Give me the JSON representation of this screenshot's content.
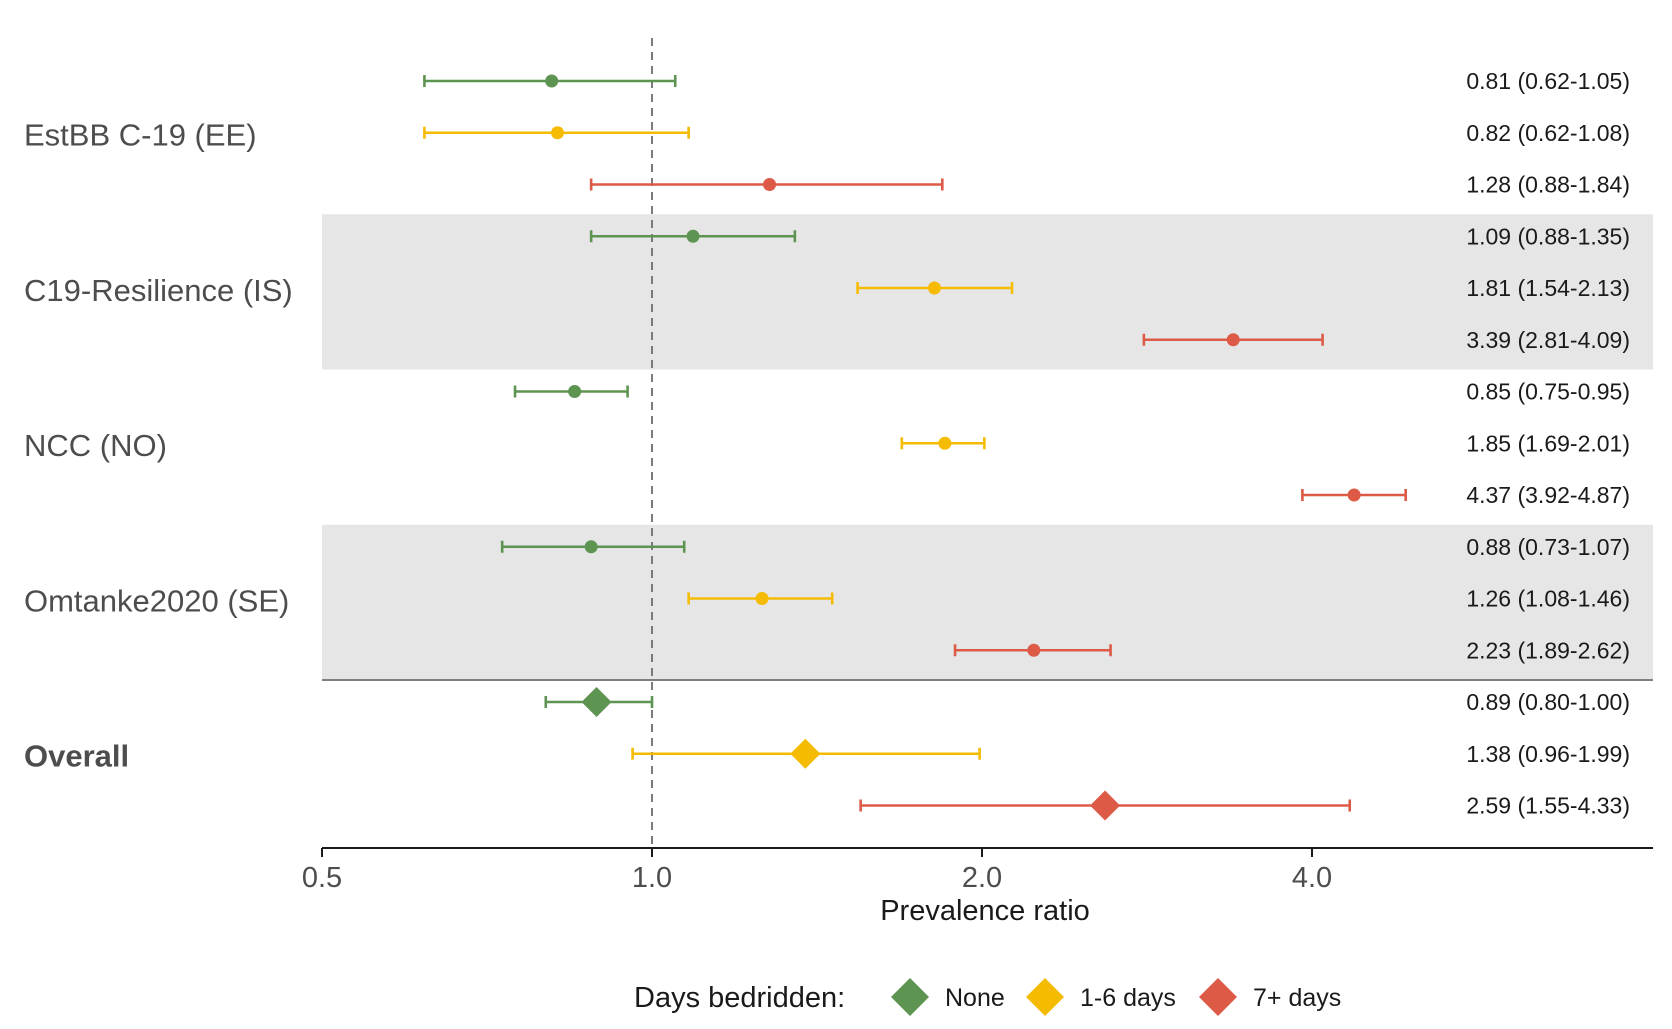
{
  "chart_data": {
    "type": "forest",
    "title": "",
    "xlabel": "Prevalence ratio",
    "ylabel": "",
    "x_scale": "log",
    "xlim": [
      0.5,
      6.6
    ],
    "x_ticks": [
      0.5,
      1.0,
      2.0,
      4.0
    ],
    "x_tick_labels": [
      "0.5",
      "1.0",
      "2.0",
      "4.0"
    ],
    "reference_line": 1.0,
    "grid": false,
    "colors": {
      "None": "#5e9452",
      "1-6 days": "#f5bb00",
      "7+ days": "#dd5a47",
      "band": "#e6e6e6"
    },
    "legend": {
      "title": "Days bedridden:",
      "position": "bottom",
      "entries": [
        "None",
        "1-6 days",
        "7+ days"
      ]
    },
    "groups": [
      {
        "label": "EstBB C-19 (EE)",
        "shaded": false,
        "bold": false,
        "rows": [
          {
            "category": "None",
            "estimate": 0.81,
            "lower": 0.62,
            "upper": 1.05,
            "text": "0.81 (0.62-1.05)"
          },
          {
            "category": "1-6 days",
            "estimate": 0.82,
            "lower": 0.62,
            "upper": 1.08,
            "text": "0.82 (0.62-1.08)"
          },
          {
            "category": "7+ days",
            "estimate": 1.28,
            "lower": 0.88,
            "upper": 1.84,
            "text": "1.28 (0.88-1.84)"
          }
        ]
      },
      {
        "label": "C19-Resilience (IS)",
        "shaded": true,
        "bold": false,
        "rows": [
          {
            "category": "None",
            "estimate": 1.09,
            "lower": 0.88,
            "upper": 1.35,
            "text": "1.09 (0.88-1.35)"
          },
          {
            "category": "1-6 days",
            "estimate": 1.81,
            "lower": 1.54,
            "upper": 2.13,
            "text": "1.81 (1.54-2.13)"
          },
          {
            "category": "7+ days",
            "estimate": 3.39,
            "lower": 2.81,
            "upper": 4.09,
            "text": "3.39 (2.81-4.09)"
          }
        ]
      },
      {
        "label": "NCC (NO)",
        "shaded": false,
        "bold": false,
        "rows": [
          {
            "category": "None",
            "estimate": 0.85,
            "lower": 0.75,
            "upper": 0.95,
            "text": "0.85 (0.75-0.95)"
          },
          {
            "category": "1-6 days",
            "estimate": 1.85,
            "lower": 1.69,
            "upper": 2.01,
            "text": "1.85 (1.69-2.01)"
          },
          {
            "category": "7+ days",
            "estimate": 4.37,
            "lower": 3.92,
            "upper": 4.87,
            "text": "4.37 (3.92-4.87)"
          }
        ]
      },
      {
        "label": "Omtanke2020 (SE)",
        "shaded": true,
        "bold": false,
        "rows": [
          {
            "category": "None",
            "estimate": 0.88,
            "lower": 0.73,
            "upper": 1.07,
            "text": "0.88 (0.73-1.07)"
          },
          {
            "category": "1-6 days",
            "estimate": 1.26,
            "lower": 1.08,
            "upper": 1.46,
            "text": "1.26 (1.08-1.46)"
          },
          {
            "category": "7+ days",
            "estimate": 2.23,
            "lower": 1.89,
            "upper": 2.62,
            "text": "2.23 (1.89-2.62)"
          }
        ]
      },
      {
        "label": "Overall",
        "shaded": false,
        "bold": true,
        "summary": true,
        "rows": [
          {
            "category": "None",
            "estimate": 0.89,
            "lower": 0.8,
            "upper": 1.0,
            "text": "0.89 (0.80-1.00)"
          },
          {
            "category": "1-6 days",
            "estimate": 1.38,
            "lower": 0.96,
            "upper": 1.99,
            "text": "1.38 (0.96-1.99)"
          },
          {
            "category": "7+ days",
            "estimate": 2.59,
            "lower": 1.55,
            "upper": 4.33,
            "text": "2.59 (1.55-4.33)"
          }
        ]
      }
    ]
  }
}
